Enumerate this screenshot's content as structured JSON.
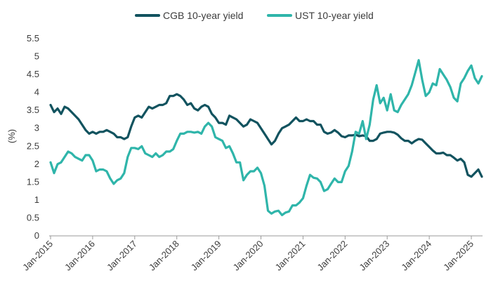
{
  "chart_data": {
    "type": "line",
    "title": "",
    "xlabel": "",
    "ylabel": "(%)",
    "ylim": [
      0,
      5.5
    ],
    "yticks": [
      "0",
      "0.5",
      "1",
      "1.5",
      "2",
      "2.5",
      "3",
      "3.5",
      "4",
      "4.5",
      "5",
      "5.5"
    ],
    "xlim": [
      "2015-01",
      "2025-04"
    ],
    "xticks": [
      {
        "label": "Jan-2015",
        "date": "2015-01"
      },
      {
        "label": "Jan-2016",
        "date": "2016-01"
      },
      {
        "label": "Jan-2017",
        "date": "2017-01"
      },
      {
        "label": "Jan-2018",
        "date": "2018-01"
      },
      {
        "label": "Jan-2019",
        "date": "2019-01"
      },
      {
        "label": "Jan-2020",
        "date": "2020-01"
      },
      {
        "label": "Jan-2021",
        "date": "2021-01"
      },
      {
        "label": "Jan-2022",
        "date": "2022-01"
      },
      {
        "label": "Jan-2023",
        "date": "2023-01"
      },
      {
        "label": "Jan-2024",
        "date": "2024-01"
      },
      {
        "label": "Jan-2025",
        "date": "2025-01"
      }
    ],
    "grid": false,
    "legend_position": "top-center",
    "series": [
      {
        "name": "CGB 10-year yield",
        "color": "#12535f",
        "points": [
          [
            "2015-01",
            3.65
          ],
          [
            "2015-02",
            3.45
          ],
          [
            "2015-03",
            3.55
          ],
          [
            "2015-04",
            3.4
          ],
          [
            "2015-05",
            3.6
          ],
          [
            "2015-06",
            3.55
          ],
          [
            "2015-07",
            3.45
          ],
          [
            "2015-08",
            3.35
          ],
          [
            "2015-09",
            3.25
          ],
          [
            "2015-10",
            3.1
          ],
          [
            "2015-11",
            2.95
          ],
          [
            "2015-12",
            2.85
          ],
          [
            "2016-01",
            2.9
          ],
          [
            "2016-02",
            2.85
          ],
          [
            "2016-03",
            2.9
          ],
          [
            "2016-04",
            2.9
          ],
          [
            "2016-05",
            2.95
          ],
          [
            "2016-06",
            2.9
          ],
          [
            "2016-07",
            2.85
          ],
          [
            "2016-08",
            2.75
          ],
          [
            "2016-09",
            2.75
          ],
          [
            "2016-10",
            2.7
          ],
          [
            "2016-11",
            2.75
          ],
          [
            "2016-12",
            3.05
          ],
          [
            "2017-01",
            3.3
          ],
          [
            "2017-02",
            3.35
          ],
          [
            "2017-03",
            3.3
          ],
          [
            "2017-04",
            3.45
          ],
          [
            "2017-05",
            3.6
          ],
          [
            "2017-06",
            3.55
          ],
          [
            "2017-07",
            3.6
          ],
          [
            "2017-08",
            3.65
          ],
          [
            "2017-09",
            3.65
          ],
          [
            "2017-10",
            3.7
          ],
          [
            "2017-11",
            3.9
          ],
          [
            "2017-12",
            3.9
          ],
          [
            "2018-01",
            3.95
          ],
          [
            "2018-02",
            3.9
          ],
          [
            "2018-03",
            3.8
          ],
          [
            "2018-04",
            3.65
          ],
          [
            "2018-05",
            3.7
          ],
          [
            "2018-06",
            3.55
          ],
          [
            "2018-07",
            3.5
          ],
          [
            "2018-08",
            3.6
          ],
          [
            "2018-09",
            3.65
          ],
          [
            "2018-10",
            3.6
          ],
          [
            "2018-11",
            3.4
          ],
          [
            "2018-12",
            3.3
          ],
          [
            "2019-01",
            3.15
          ],
          [
            "2019-02",
            3.15
          ],
          [
            "2019-03",
            3.1
          ],
          [
            "2019-04",
            3.35
          ],
          [
            "2019-05",
            3.3
          ],
          [
            "2019-06",
            3.25
          ],
          [
            "2019-07",
            3.15
          ],
          [
            "2019-08",
            3.05
          ],
          [
            "2019-09",
            3.1
          ],
          [
            "2019-10",
            3.25
          ],
          [
            "2019-11",
            3.2
          ],
          [
            "2019-12",
            3.15
          ],
          [
            "2020-01",
            3.0
          ],
          [
            "2020-02",
            2.85
          ],
          [
            "2020-03",
            2.7
          ],
          [
            "2020-04",
            2.55
          ],
          [
            "2020-05",
            2.65
          ],
          [
            "2020-06",
            2.85
          ],
          [
            "2020-07",
            3.0
          ],
          [
            "2020-08",
            3.05
          ],
          [
            "2020-09",
            3.1
          ],
          [
            "2020-10",
            3.2
          ],
          [
            "2020-11",
            3.3
          ],
          [
            "2020-12",
            3.2
          ],
          [
            "2021-01",
            3.2
          ],
          [
            "2021-02",
            3.25
          ],
          [
            "2021-03",
            3.2
          ],
          [
            "2021-04",
            3.2
          ],
          [
            "2021-05",
            3.1
          ],
          [
            "2021-06",
            3.1
          ],
          [
            "2021-07",
            2.9
          ],
          [
            "2021-08",
            2.85
          ],
          [
            "2021-09",
            2.88
          ],
          [
            "2021-10",
            2.95
          ],
          [
            "2021-11",
            2.88
          ],
          [
            "2021-12",
            2.78
          ],
          [
            "2022-01",
            2.75
          ],
          [
            "2022-02",
            2.8
          ],
          [
            "2022-03",
            2.8
          ],
          [
            "2022-04",
            2.82
          ],
          [
            "2022-05",
            2.78
          ],
          [
            "2022-06",
            2.8
          ],
          [
            "2022-07",
            2.78
          ],
          [
            "2022-08",
            2.65
          ],
          [
            "2022-09",
            2.65
          ],
          [
            "2022-10",
            2.7
          ],
          [
            "2022-11",
            2.85
          ],
          [
            "2022-12",
            2.88
          ],
          [
            "2023-01",
            2.9
          ],
          [
            "2023-02",
            2.9
          ],
          [
            "2023-03",
            2.88
          ],
          [
            "2023-04",
            2.82
          ],
          [
            "2023-05",
            2.72
          ],
          [
            "2023-06",
            2.65
          ],
          [
            "2023-07",
            2.65
          ],
          [
            "2023-08",
            2.58
          ],
          [
            "2023-09",
            2.65
          ],
          [
            "2023-10",
            2.7
          ],
          [
            "2023-11",
            2.68
          ],
          [
            "2023-12",
            2.58
          ],
          [
            "2024-01",
            2.48
          ],
          [
            "2024-02",
            2.38
          ],
          [
            "2024-03",
            2.3
          ],
          [
            "2024-04",
            2.3
          ],
          [
            "2024-05",
            2.32
          ],
          [
            "2024-06",
            2.25
          ],
          [
            "2024-07",
            2.25
          ],
          [
            "2024-08",
            2.18
          ],
          [
            "2024-09",
            2.1
          ],
          [
            "2024-10",
            2.15
          ],
          [
            "2024-11",
            2.05
          ],
          [
            "2024-12",
            1.7
          ],
          [
            "2025-01",
            1.65
          ],
          [
            "2025-02",
            1.75
          ],
          [
            "2025-03",
            1.85
          ],
          [
            "2025-04",
            1.65
          ]
        ]
      },
      {
        "name": "UST 10-year yield",
        "color": "#2fb5aa",
        "points": [
          [
            "2015-01",
            2.05
          ],
          [
            "2015-02",
            1.75
          ],
          [
            "2015-03",
            2.0
          ],
          [
            "2015-04",
            2.05
          ],
          [
            "2015-05",
            2.2
          ],
          [
            "2015-06",
            2.35
          ],
          [
            "2015-07",
            2.3
          ],
          [
            "2015-08",
            2.2
          ],
          [
            "2015-09",
            2.15
          ],
          [
            "2015-10",
            2.1
          ],
          [
            "2015-11",
            2.25
          ],
          [
            "2015-12",
            2.25
          ],
          [
            "2016-01",
            2.1
          ],
          [
            "2016-02",
            1.8
          ],
          [
            "2016-03",
            1.85
          ],
          [
            "2016-04",
            1.85
          ],
          [
            "2016-05",
            1.8
          ],
          [
            "2016-06",
            1.6
          ],
          [
            "2016-07",
            1.45
          ],
          [
            "2016-08",
            1.55
          ],
          [
            "2016-09",
            1.6
          ],
          [
            "2016-10",
            1.75
          ],
          [
            "2016-11",
            2.2
          ],
          [
            "2016-12",
            2.45
          ],
          [
            "2017-01",
            2.45
          ],
          [
            "2017-02",
            2.42
          ],
          [
            "2017-03",
            2.5
          ],
          [
            "2017-04",
            2.3
          ],
          [
            "2017-05",
            2.25
          ],
          [
            "2017-06",
            2.2
          ],
          [
            "2017-07",
            2.3
          ],
          [
            "2017-08",
            2.2
          ],
          [
            "2017-09",
            2.25
          ],
          [
            "2017-10",
            2.35
          ],
          [
            "2017-11",
            2.35
          ],
          [
            "2017-12",
            2.42
          ],
          [
            "2018-01",
            2.65
          ],
          [
            "2018-02",
            2.85
          ],
          [
            "2018-03",
            2.85
          ],
          [
            "2018-04",
            2.9
          ],
          [
            "2018-05",
            2.9
          ],
          [
            "2018-06",
            2.88
          ],
          [
            "2018-07",
            2.9
          ],
          [
            "2018-08",
            2.85
          ],
          [
            "2018-09",
            3.05
          ],
          [
            "2018-10",
            3.15
          ],
          [
            "2018-11",
            3.05
          ],
          [
            "2018-12",
            2.75
          ],
          [
            "2019-01",
            2.7
          ],
          [
            "2019-02",
            2.65
          ],
          [
            "2019-03",
            2.45
          ],
          [
            "2019-04",
            2.5
          ],
          [
            "2019-05",
            2.3
          ],
          [
            "2019-06",
            2.05
          ],
          [
            "2019-07",
            2.05
          ],
          [
            "2019-08",
            1.55
          ],
          [
            "2019-09",
            1.7
          ],
          [
            "2019-10",
            1.8
          ],
          [
            "2019-11",
            1.8
          ],
          [
            "2019-12",
            1.9
          ],
          [
            "2020-01",
            1.75
          ],
          [
            "2020-02",
            1.4
          ],
          [
            "2020-03",
            0.7
          ],
          [
            "2020-04",
            0.62
          ],
          [
            "2020-05",
            0.68
          ],
          [
            "2020-06",
            0.7
          ],
          [
            "2020-07",
            0.58
          ],
          [
            "2020-08",
            0.65
          ],
          [
            "2020-09",
            0.68
          ],
          [
            "2020-10",
            0.85
          ],
          [
            "2020-11",
            0.85
          ],
          [
            "2020-12",
            0.93
          ],
          [
            "2021-01",
            1.05
          ],
          [
            "2021-02",
            1.4
          ],
          [
            "2021-03",
            1.7
          ],
          [
            "2021-04",
            1.62
          ],
          [
            "2021-05",
            1.6
          ],
          [
            "2021-06",
            1.5
          ],
          [
            "2021-07",
            1.25
          ],
          [
            "2021-08",
            1.3
          ],
          [
            "2021-09",
            1.45
          ],
          [
            "2021-10",
            1.6
          ],
          [
            "2021-11",
            1.5
          ],
          [
            "2021-12",
            1.5
          ],
          [
            "2022-01",
            1.8
          ],
          [
            "2022-02",
            1.95
          ],
          [
            "2022-03",
            2.35
          ],
          [
            "2022-04",
            2.9
          ],
          [
            "2022-05",
            2.85
          ],
          [
            "2022-06",
            3.2
          ],
          [
            "2022-07",
            2.7
          ],
          [
            "2022-08",
            3.1
          ],
          [
            "2022-09",
            3.8
          ],
          [
            "2022-10",
            4.2
          ],
          [
            "2022-11",
            3.7
          ],
          [
            "2022-12",
            3.85
          ],
          [
            "2023-01",
            3.5
          ],
          [
            "2023-02",
            3.95
          ],
          [
            "2023-03",
            3.5
          ],
          [
            "2023-04",
            3.45
          ],
          [
            "2023-05",
            3.65
          ],
          [
            "2023-06",
            3.8
          ],
          [
            "2023-07",
            3.95
          ],
          [
            "2023-08",
            4.2
          ],
          [
            "2023-09",
            4.55
          ],
          [
            "2023-10",
            4.9
          ],
          [
            "2023-11",
            4.35
          ],
          [
            "2023-12",
            3.9
          ],
          [
            "2024-01",
            4.0
          ],
          [
            "2024-02",
            4.25
          ],
          [
            "2024-03",
            4.2
          ],
          [
            "2024-04",
            4.65
          ],
          [
            "2024-05",
            4.5
          ],
          [
            "2024-06",
            4.35
          ],
          [
            "2024-07",
            4.15
          ],
          [
            "2024-08",
            3.85
          ],
          [
            "2024-09",
            3.75
          ],
          [
            "2024-10",
            4.25
          ],
          [
            "2024-11",
            4.4
          ],
          [
            "2024-12",
            4.6
          ],
          [
            "2025-01",
            4.75
          ],
          [
            "2025-02",
            4.4
          ],
          [
            "2025-03",
            4.25
          ],
          [
            "2025-04",
            4.45
          ]
        ]
      }
    ]
  }
}
